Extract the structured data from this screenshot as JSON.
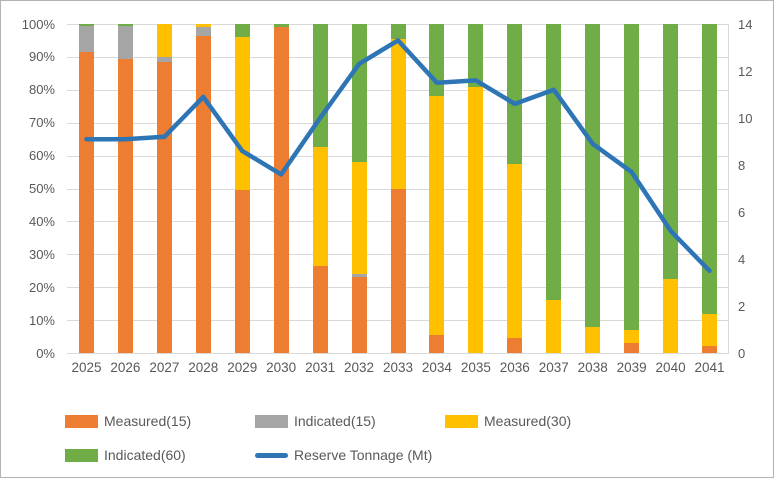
{
  "chart": {
    "title": "",
    "colors": {
      "measured15": "#ED7D31",
      "indicated15": "#A5A5A5",
      "measured30": "#FFC000",
      "indicated60": "#70AD47",
      "reserve_line": "#2E75B6",
      "grid": "#D9D9D9",
      "text": "#595959",
      "frame_border": "#B3B3B3",
      "background": "#FFFFFF"
    },
    "left_axis_ticks": [
      "0%",
      "10%",
      "20%",
      "30%",
      "40%",
      "50%",
      "60%",
      "70%",
      "80%",
      "90%",
      "100%"
    ],
    "right_axis_ticks": [
      "0",
      "2",
      "4",
      "6",
      "8",
      "10",
      "12",
      "14"
    ],
    "legend": {
      "rows": [
        [
          {
            "label": "Measured(15)",
            "swatch": "rect",
            "color": "#ED7D31"
          },
          {
            "label": "Indicated(15)",
            "swatch": "rect",
            "color": "#A5A5A5"
          },
          {
            "label": "Measured(30)",
            "swatch": "rect",
            "color": "#FFC000"
          }
        ],
        [
          {
            "label": "Indicated(60)",
            "swatch": "rect",
            "color": "#70AD47"
          },
          {
            "label": "Reserve Tonnage (Mt)",
            "swatch": "line",
            "color": "#2E75B6"
          }
        ]
      ]
    }
  },
  "chart_data": [
    {
      "type": "bar",
      "subtype": "stacked-100-percent",
      "y_axis": "left",
      "ylim": [
        0,
        100
      ],
      "grid": true,
      "categories": [
        "2025",
        "2026",
        "2027",
        "2028",
        "2029",
        "2030",
        "2031",
        "2032",
        "2033",
        "2034",
        "2035",
        "2036",
        "2037",
        "2038",
        "2039",
        "2040",
        "2041"
      ],
      "series": [
        {
          "name": "Measured(15)",
          "color": "#ED7D31",
          "values": [
            91.5,
            89.5,
            88.5,
            96.5,
            49.5,
            99,
            26.5,
            23,
            50,
            5.5,
            0,
            4.5,
            0,
            0,
            3,
            0,
            2
          ]
        },
        {
          "name": "Indicated(15)",
          "color": "#A5A5A5",
          "values": [
            8,
            10,
            1.5,
            2.7,
            0,
            0,
            0,
            1,
            0,
            0,
            0,
            0,
            0,
            0,
            0,
            0,
            0
          ]
        },
        {
          "name": "Measured(30)",
          "color": "#FFC000",
          "values": [
            0,
            0,
            10,
            0.8,
            46.5,
            0,
            36,
            34,
            45.5,
            72.5,
            81,
            53,
            16,
            8,
            4,
            22.5,
            10
          ]
        },
        {
          "name": "Indicated(60)",
          "color": "#70AD47",
          "values": [
            0.5,
            0.5,
            0,
            0,
            4,
            1,
            37.5,
            42,
            4.5,
            22,
            19,
            42.5,
            84,
            92,
            93,
            77.5,
            88
          ]
        }
      ]
    },
    {
      "type": "line",
      "y_axis": "right",
      "ylim": [
        0,
        14
      ],
      "categories": [
        "2025",
        "2026",
        "2027",
        "2028",
        "2029",
        "2030",
        "2031",
        "2032",
        "2033",
        "2034",
        "2035",
        "2036",
        "2037",
        "2038",
        "2039",
        "2040",
        "2041"
      ],
      "series": [
        {
          "name": "Reserve Tonnage (Mt)",
          "color": "#2E75B6",
          "values": [
            9.1,
            9.1,
            9.2,
            10.9,
            8.6,
            7.6,
            10.0,
            12.3,
            13.3,
            11.5,
            11.6,
            10.6,
            11.2,
            8.9,
            7.7,
            5.2,
            3.5
          ]
        }
      ]
    }
  ]
}
